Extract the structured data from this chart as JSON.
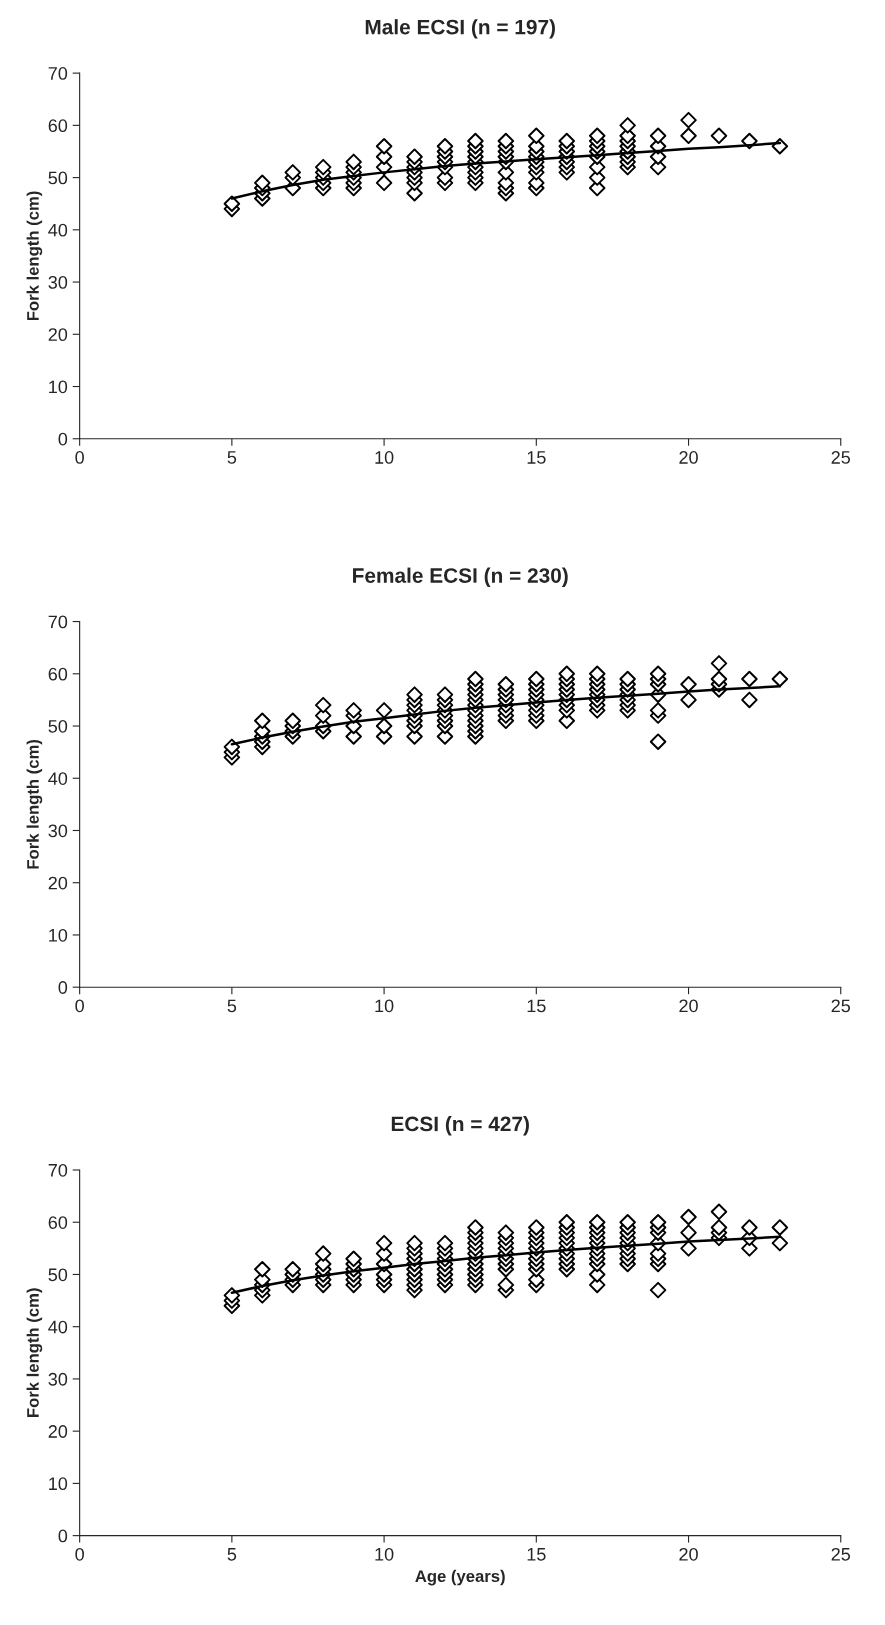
{
  "chart_data": [
    {
      "type": "scatter",
      "title": "Male ECSI (n = 197)",
      "ylabel": "Fork length (cm)",
      "xlim": [
        0,
        25
      ],
      "ylim": [
        0,
        70
      ],
      "xticks": [
        0,
        5,
        10,
        15,
        20,
        25
      ],
      "yticks": [
        0,
        10,
        20,
        30,
        40,
        50,
        60,
        70
      ],
      "marker": "diamond",
      "grid": false,
      "legend": false,
      "series": [
        {
          "color": "#000000",
          "x": [
            5,
            5,
            6,
            6,
            6,
            6,
            7,
            7,
            7,
            8,
            8,
            8,
            8,
            8,
            9,
            9,
            9,
            9,
            9,
            9,
            10,
            10,
            10,
            10,
            11,
            11,
            11,
            11,
            11,
            11,
            11,
            12,
            12,
            12,
            12,
            12,
            12,
            12,
            13,
            13,
            13,
            13,
            13,
            13,
            13,
            13,
            13,
            14,
            14,
            14,
            14,
            14,
            14,
            14,
            14,
            14,
            15,
            15,
            15,
            15,
            15,
            15,
            15,
            15,
            15,
            16,
            16,
            16,
            16,
            16,
            16,
            16,
            17,
            17,
            17,
            17,
            17,
            17,
            17,
            17,
            18,
            18,
            18,
            18,
            18,
            18,
            18,
            18,
            19,
            19,
            19,
            19,
            20,
            20,
            21,
            22,
            23
          ],
          "values": [
            44,
            45,
            46,
            47,
            48,
            49,
            48,
            50,
            51,
            48,
            49,
            50,
            51,
            52,
            48,
            49,
            50,
            51,
            52,
            53,
            49,
            52,
            54,
            56,
            47,
            49,
            50,
            51,
            52,
            53,
            54,
            49,
            50,
            52,
            53,
            54,
            55,
            56,
            49,
            50,
            51,
            52,
            53,
            54,
            55,
            56,
            57,
            47,
            48,
            49,
            51,
            53,
            54,
            55,
            56,
            57,
            48,
            49,
            51,
            52,
            53,
            54,
            55,
            56,
            58,
            51,
            52,
            53,
            54,
            55,
            56,
            57,
            48,
            50,
            52,
            54,
            55,
            56,
            57,
            58,
            52,
            53,
            54,
            55,
            56,
            57,
            58,
            60,
            52,
            54,
            56,
            58,
            58,
            61,
            58,
            57,
            56
          ]
        },
        {
          "type": "line",
          "color": "#000000",
          "marker": "none",
          "x": [
            5,
            6,
            7,
            8,
            9,
            10,
            11,
            12,
            13,
            14,
            15,
            16,
            17,
            18,
            19,
            20,
            21,
            22,
            23
          ],
          "values": [
            46,
            47.4,
            48.6,
            49.6,
            50.3,
            51,
            51.6,
            52.2,
            52.7,
            53.1,
            53.5,
            53.9,
            54.3,
            54.7,
            55.1,
            55.5,
            55.8,
            56.2,
            56.6
          ]
        }
      ]
    },
    {
      "type": "scatter",
      "title": "Female ECSI (n = 230)",
      "ylabel": "Fork length (cm)",
      "xlim": [
        0,
        25
      ],
      "ylim": [
        0,
        70
      ],
      "xticks": [
        0,
        5,
        10,
        15,
        20,
        25
      ],
      "yticks": [
        0,
        10,
        20,
        30,
        40,
        50,
        60,
        70
      ],
      "marker": "diamond",
      "grid": false,
      "legend": false,
      "series": [
        {
          "color": "#000000",
          "x": [
            5,
            5,
            5,
            6,
            6,
            6,
            6,
            6,
            7,
            7,
            7,
            7,
            8,
            8,
            8,
            8,
            9,
            9,
            9,
            9,
            10,
            10,
            10,
            11,
            11,
            11,
            11,
            11,
            11,
            11,
            11,
            12,
            12,
            12,
            12,
            12,
            12,
            12,
            12,
            13,
            13,
            13,
            13,
            13,
            13,
            13,
            13,
            13,
            13,
            13,
            13,
            14,
            14,
            14,
            14,
            14,
            14,
            14,
            14,
            15,
            15,
            15,
            15,
            15,
            15,
            15,
            15,
            15,
            16,
            16,
            16,
            16,
            16,
            16,
            16,
            16,
            16,
            17,
            17,
            17,
            17,
            17,
            17,
            17,
            17,
            18,
            18,
            18,
            18,
            18,
            18,
            18,
            19,
            19,
            19,
            19,
            19,
            19,
            19,
            20,
            20,
            21,
            21,
            21,
            21,
            22,
            22,
            23
          ],
          "values": [
            44,
            45,
            46,
            46,
            47,
            48,
            49,
            51,
            48,
            49,
            50,
            51,
            49,
            50,
            52,
            54,
            48,
            50,
            52,
            53,
            48,
            50,
            53,
            48,
            50,
            51,
            52,
            53,
            54,
            55,
            56,
            48,
            50,
            51,
            52,
            53,
            54,
            55,
            56,
            48,
            49,
            50,
            51,
            52,
            53,
            54,
            55,
            56,
            57,
            58,
            59,
            51,
            52,
            53,
            54,
            55,
            56,
            57,
            58,
            51,
            52,
            53,
            54,
            55,
            56,
            57,
            58,
            59,
            51,
            53,
            54,
            55,
            56,
            57,
            58,
            59,
            60,
            53,
            54,
            55,
            56,
            57,
            58,
            59,
            60,
            53,
            54,
            55,
            56,
            57,
            58,
            59,
            47,
            52,
            53,
            56,
            58,
            59,
            60,
            55,
            58,
            57,
            58,
            59,
            62,
            55,
            59,
            59
          ]
        },
        {
          "type": "line",
          "color": "#000000",
          "marker": "none",
          "x": [
            5,
            6,
            7,
            8,
            9,
            10,
            11,
            12,
            13,
            14,
            15,
            16,
            17,
            18,
            19,
            20,
            21,
            22,
            23
          ],
          "values": [
            46.5,
            47.8,
            48.9,
            49.9,
            50.8,
            51.5,
            52.2,
            52.9,
            53.5,
            54,
            54.5,
            55,
            55.4,
            55.8,
            56.2,
            56.6,
            57,
            57.3,
            57.6
          ]
        }
      ]
    },
    {
      "type": "scatter",
      "title": "ECSI (n = 427)",
      "xlabel": "Age (years)",
      "ylabel": "Fork length (cm)",
      "xlim": [
        0,
        25
      ],
      "ylim": [
        0,
        70
      ],
      "xticks": [
        0,
        5,
        10,
        15,
        20,
        25
      ],
      "yticks": [
        0,
        10,
        20,
        30,
        40,
        50,
        60,
        70
      ],
      "marker": "diamond",
      "grid": false,
      "legend": false,
      "series": [
        {
          "color": "#000000",
          "x": [
            5,
            5,
            5,
            6,
            6,
            6,
            6,
            6,
            7,
            7,
            7,
            7,
            8,
            8,
            8,
            8,
            8,
            8,
            9,
            9,
            9,
            9,
            9,
            9,
            10,
            10,
            10,
            10,
            10,
            10,
            11,
            11,
            11,
            11,
            11,
            11,
            11,
            11,
            11,
            11,
            12,
            12,
            12,
            12,
            12,
            12,
            12,
            12,
            12,
            13,
            13,
            13,
            13,
            13,
            13,
            13,
            13,
            13,
            13,
            13,
            13,
            14,
            14,
            14,
            14,
            14,
            14,
            14,
            14,
            14,
            14,
            15,
            15,
            15,
            15,
            15,
            15,
            15,
            15,
            15,
            15,
            15,
            16,
            16,
            16,
            16,
            16,
            16,
            16,
            16,
            16,
            16,
            17,
            17,
            17,
            17,
            17,
            17,
            17,
            17,
            17,
            17,
            17,
            18,
            18,
            18,
            18,
            18,
            18,
            18,
            18,
            18,
            19,
            19,
            19,
            19,
            19,
            19,
            19,
            19,
            20,
            20,
            20,
            21,
            21,
            21,
            21,
            22,
            22,
            22,
            23,
            23
          ],
          "values": [
            44,
            45,
            46,
            46,
            47,
            48,
            49,
            51,
            48,
            49,
            50,
            51,
            48,
            49,
            50,
            51,
            52,
            54,
            48,
            49,
            50,
            51,
            52,
            53,
            48,
            49,
            50,
            52,
            54,
            56,
            47,
            48,
            49,
            50,
            51,
            52,
            53,
            54,
            55,
            56,
            48,
            49,
            50,
            51,
            52,
            53,
            54,
            55,
            56,
            48,
            49,
            50,
            51,
            52,
            53,
            54,
            55,
            56,
            57,
            58,
            59,
            47,
            48,
            51,
            52,
            53,
            54,
            55,
            56,
            57,
            58,
            48,
            49,
            51,
            52,
            53,
            54,
            55,
            56,
            57,
            58,
            59,
            51,
            52,
            53,
            54,
            55,
            56,
            57,
            58,
            59,
            60,
            48,
            50,
            52,
            53,
            54,
            55,
            56,
            57,
            58,
            59,
            60,
            52,
            53,
            54,
            55,
            56,
            57,
            58,
            59,
            60,
            47,
            52,
            53,
            54,
            56,
            58,
            59,
            60,
            55,
            58,
            61,
            57,
            58,
            59,
            62,
            55,
            57,
            59,
            56,
            59
          ]
        },
        {
          "type": "line",
          "color": "#000000",
          "marker": "none",
          "x": [
            5,
            6,
            7,
            8,
            9,
            10,
            11,
            12,
            13,
            14,
            15,
            16,
            17,
            18,
            19,
            20,
            21,
            22,
            23
          ],
          "values": [
            46.5,
            47.8,
            48.9,
            49.8,
            50.6,
            51.3,
            52,
            52.6,
            53.2,
            53.7,
            54.2,
            54.7,
            55.1,
            55.5,
            55.9,
            56.3,
            56.6,
            56.9,
            57.2
          ]
        }
      ]
    }
  ]
}
